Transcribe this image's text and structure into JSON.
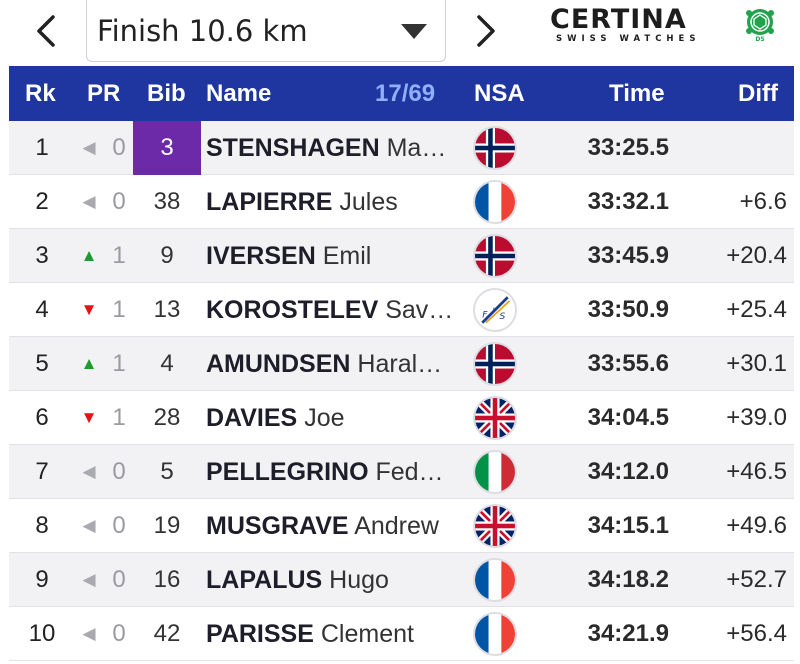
{
  "header": {
    "select_value": "Finish 10.6 km",
    "logo_text": "CERTINA",
    "logo_subtext": "SWISS WATCHES",
    "logo_badge_text": "DS",
    "icons": {
      "prev": "chevron-left-icon",
      "next": "chevron-right-icon",
      "caret": "caret-down-icon"
    }
  },
  "table": {
    "columns": {
      "rank": "Rk",
      "pr": "PR",
      "bib": "Bib",
      "name": "Name",
      "count": "17/69",
      "nsa": "NSA",
      "time": "Time",
      "diff": "Diff"
    },
    "colors": {
      "header_bg": "#1f35a0",
      "count_color": "#8fb0ff",
      "highlight_bib": "#6d2aa8",
      "up": "#1f9a2e",
      "down": "#e01515"
    },
    "rows": [
      {
        "rank": "1",
        "trend": "left",
        "pr": "0",
        "bib": "3",
        "surname": "STENSHAGEN",
        "given": "Ma…",
        "flag": "NOR",
        "time": "33:25.5",
        "diff": "",
        "highlight": true
      },
      {
        "rank": "2",
        "trend": "left",
        "pr": "0",
        "bib": "38",
        "surname": "LAPIERRE",
        "given": "Jules",
        "flag": "FRA",
        "time": "33:32.1",
        "diff": "+6.6"
      },
      {
        "rank": "3",
        "trend": "up",
        "pr": "1",
        "bib": "9",
        "surname": "IVERSEN",
        "given": "Emil",
        "flag": "NOR",
        "time": "33:45.9",
        "diff": "+20.4"
      },
      {
        "rank": "4",
        "trend": "down",
        "pr": "1",
        "bib": "13",
        "surname": "KOROSTELEV",
        "given": "Sav…",
        "flag": "FIS",
        "time": "33:50.9",
        "diff": "+25.4"
      },
      {
        "rank": "5",
        "trend": "up",
        "pr": "1",
        "bib": "4",
        "surname": "AMUNDSEN",
        "given": "Haral…",
        "flag": "NOR",
        "time": "33:55.6",
        "diff": "+30.1"
      },
      {
        "rank": "6",
        "trend": "down",
        "pr": "1",
        "bib": "28",
        "surname": "DAVIES",
        "given": "Joe",
        "flag": "GBR",
        "time": "34:04.5",
        "diff": "+39.0"
      },
      {
        "rank": "7",
        "trend": "left",
        "pr": "0",
        "bib": "5",
        "surname": "PELLEGRINO",
        "given": "Fed…",
        "flag": "ITA",
        "time": "34:12.0",
        "diff": "+46.5"
      },
      {
        "rank": "8",
        "trend": "left",
        "pr": "0",
        "bib": "19",
        "surname": "MUSGRAVE",
        "given": "Andrew",
        "flag": "GBR",
        "time": "34:15.1",
        "diff": "+49.6"
      },
      {
        "rank": "9",
        "trend": "left",
        "pr": "0",
        "bib": "16",
        "surname": "LAPALUS",
        "given": "Hugo",
        "flag": "FRA",
        "time": "34:18.2",
        "diff": "+52.7"
      },
      {
        "rank": "10",
        "trend": "left",
        "pr": "0",
        "bib": "42",
        "surname": "PARISSE",
        "given": "Clement",
        "flag": "FRA",
        "time": "34:21.9",
        "diff": "+56.4"
      }
    ]
  }
}
